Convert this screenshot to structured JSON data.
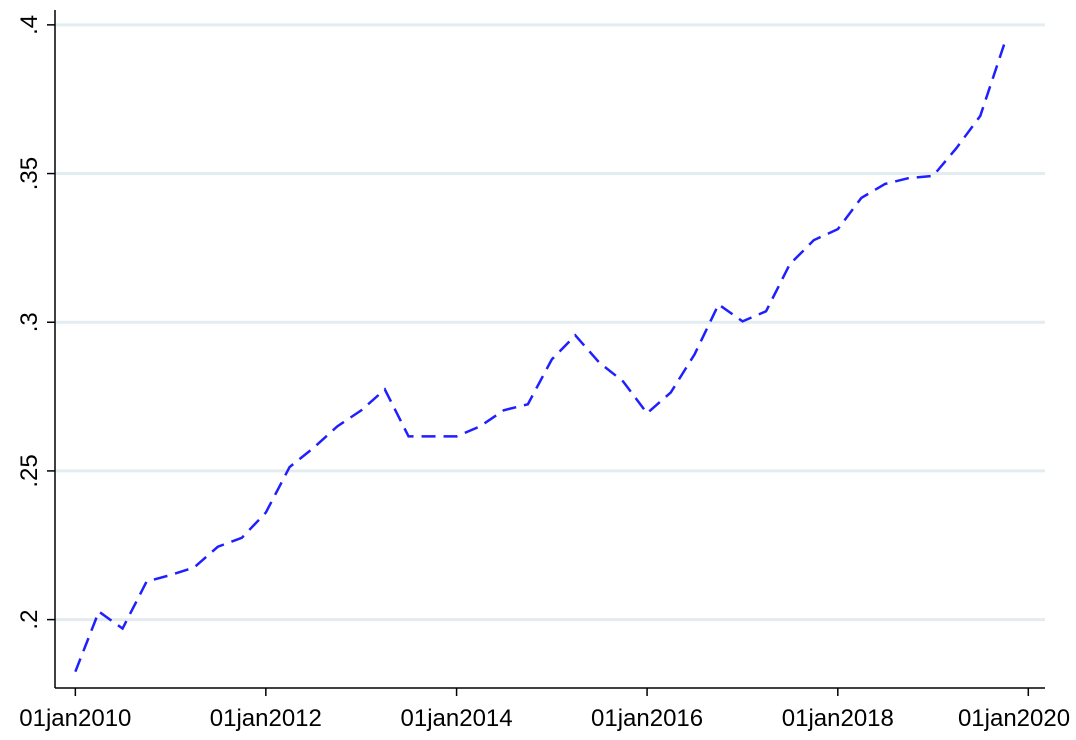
{
  "chart_data": {
    "type": "line",
    "x": [
      "2010-01-01",
      "2010-04-01",
      "2010-07-01",
      "2010-10-01",
      "2011-01-01",
      "2011-04-01",
      "2011-07-01",
      "2011-10-01",
      "2012-01-01",
      "2012-04-01",
      "2012-07-01",
      "2012-10-01",
      "2013-01-01",
      "2013-04-01",
      "2013-07-01",
      "2013-10-01",
      "2014-01-01",
      "2014-04-01",
      "2014-07-01",
      "2014-10-01",
      "2015-01-01",
      "2015-04-01",
      "2015-07-01",
      "2015-10-01",
      "2016-01-01",
      "2016-04-01",
      "2016-07-01",
      "2016-10-01",
      "2017-01-01",
      "2017-04-01",
      "2017-07-01",
      "2017-10-01",
      "2018-01-01",
      "2018-04-01",
      "2018-07-01",
      "2018-10-01",
      "2019-01-01",
      "2019-04-01",
      "2019-07-01",
      "2019-10-01"
    ],
    "series": [
      {
        "color": "#1f1fff",
        "values": [
          0.1825,
          0.2027,
          0.197,
          0.2128,
          0.215,
          0.2175,
          0.2245,
          0.2275,
          0.236,
          0.2513,
          0.2577,
          0.265,
          0.2704,
          0.2774,
          0.2616,
          0.2616,
          0.2616,
          0.265,
          0.2704,
          0.2724,
          0.2875,
          0.2956,
          0.2865,
          0.2801,
          0.2694,
          0.2764,
          0.2892,
          0.306,
          0.3003,
          0.3037,
          0.3195,
          0.3276,
          0.3313,
          0.3418,
          0.3465,
          0.3485,
          0.3492,
          0.3586,
          0.3694,
          0.3936
        ]
      }
    ],
    "xlim": [
      "2009-10-15",
      "2020-03-05"
    ],
    "xticks": [
      {
        "value": "2010-01-01",
        "label": "01jan2010"
      },
      {
        "value": "2012-01-01",
        "label": "01jan2012"
      },
      {
        "value": "2014-01-01",
        "label": "01jan2014"
      },
      {
        "value": "2016-01-01",
        "label": "01jan2016"
      },
      {
        "value": "2018-01-01",
        "label": "01jan2018"
      },
      {
        "value": "2020-01-01",
        "label": "01jan2020"
      }
    ],
    "ylim": [
      0.177,
      0.405
    ],
    "yticks": [
      {
        "value": 0.2,
        "label": ".2"
      },
      {
        "value": 0.25,
        "label": ".25"
      },
      {
        "value": 0.3,
        "label": ".3"
      },
      {
        "value": 0.35,
        "label": ".35"
      },
      {
        "value": 0.4,
        "label": ".4"
      }
    ],
    "grid": true
  }
}
